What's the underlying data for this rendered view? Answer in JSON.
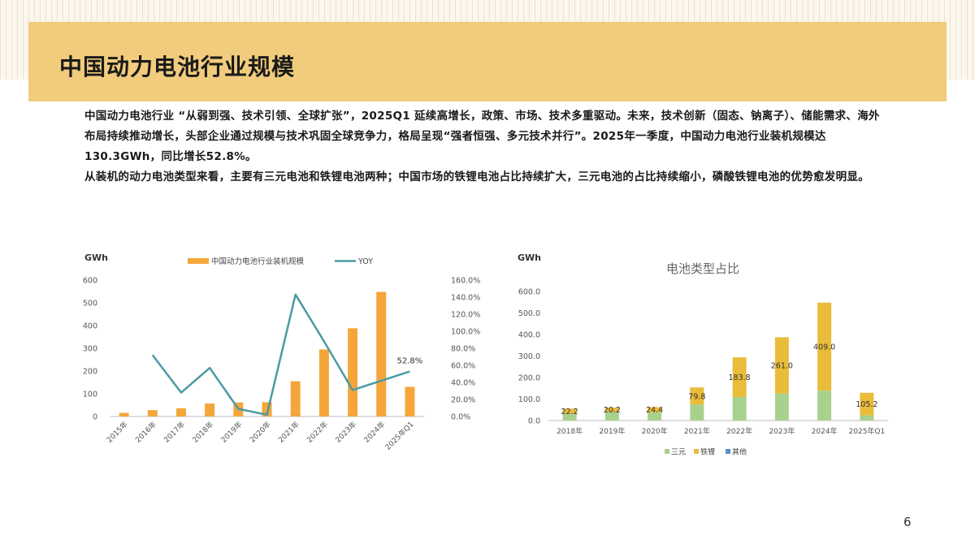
{
  "slide": {
    "title": "中国动力电池行业规模",
    "paragraphs": [
      "中国动力电池行业 “从弱到强、技术引领、全球扩张”，2025Q1 延续高增长，政策、市场、技术多重驱动。未来，技术创新（固态、钠离子）、储能需求、海外布局持续推动增长，头部企业通过规模与技术巩固全球竞争力，格局呈现“强者恒强、多元技术并行”。2025年一季度，中国动力电池行业装机规模达130.3GWh，同比增长52.8%。",
      "从装机的动力电池类型来看，主要有三元电池和铁锂电池两种；中国市场的铁锂电池占比持续扩大，三元电池的占比持续缩小，磷酸铁锂电池的优势愈发明显。"
    ],
    "page_number": "6"
  },
  "colors": {
    "title_band": "#f1cc7c",
    "bar_orange": "#f5a63a",
    "line_teal": "#4b9aa3",
    "sanyuan_green": "#a9d18e",
    "tieli_gold": "#e9bc3a",
    "qita_blue": "#5b8fc7"
  },
  "chart_data": [
    {
      "type": "bar",
      "combo": "bar+line",
      "title": "",
      "ylabel": "GWh",
      "categories": [
        "2015年",
        "2016年",
        "2017年",
        "2018年",
        "2019年",
        "2020年",
        "2021年",
        "2022年",
        "2023年",
        "2024年",
        "2025年Q1"
      ],
      "ylim": [
        0,
        600
      ],
      "yticks": [
        "0",
        "100",
        "200",
        "300",
        "400",
        "500",
        "600"
      ],
      "y2lim": [
        0,
        160
      ],
      "y2ticks": [
        "0.0%",
        "20.0%",
        "40.0%",
        "60.0%",
        "80.0%",
        "100.0%",
        "120.0%",
        "140.0%",
        "160.0%"
      ],
      "legend_position": "top",
      "series": [
        {
          "name": "中国动力电池行业装机规模",
          "kind": "bar",
          "axis": "left",
          "color": "#f5a63a",
          "values": [
            16,
            28,
            36,
            57,
            62,
            63,
            155,
            295,
            388,
            548,
            130.3
          ]
        },
        {
          "name": "YOY",
          "kind": "line",
          "axis": "right",
          "color": "#4b9aa3",
          "values": [
            null,
            72,
            28,
            57,
            9,
            2,
            143,
            88,
            31,
            42,
            52.8
          ]
        }
      ],
      "data_labels": [
        {
          "index": 10,
          "text": "52.8%"
        }
      ]
    },
    {
      "type": "bar",
      "stacked": true,
      "title": "电池类型占比",
      "ylabel": "GWh",
      "categories": [
        "2018年",
        "2019年",
        "2020年",
        "2021年",
        "2022年",
        "2023年",
        "2024年",
        "2025年Q1"
      ],
      "ylim": [
        0,
        600
      ],
      "yticks": [
        "0.0",
        "100.0",
        "200.0",
        "300.0",
        "400.0",
        "500.0",
        "600.0"
      ],
      "legend_position": "bottom",
      "series": [
        {
          "name": "三元",
          "color": "#a9d18e",
          "values": [
            33,
            40,
            38,
            74,
            110,
            126,
            139,
            24
          ]
        },
        {
          "name": "铁锂",
          "color": "#e9bc3a",
          "values": [
            22.2,
            20.2,
            24.4,
            79.8,
            183.8,
            261.0,
            409.0,
            105.2
          ]
        },
        {
          "name": "其他",
          "color": "#5b8fc7",
          "values": [
            0,
            0,
            0,
            0,
            0,
            0,
            0,
            0
          ]
        }
      ],
      "data_labels": [
        "22.2",
        "20.2",
        "24.4",
        "79.8",
        "183.8",
        "261.0",
        "409.0",
        "105.2"
      ]
    }
  ]
}
